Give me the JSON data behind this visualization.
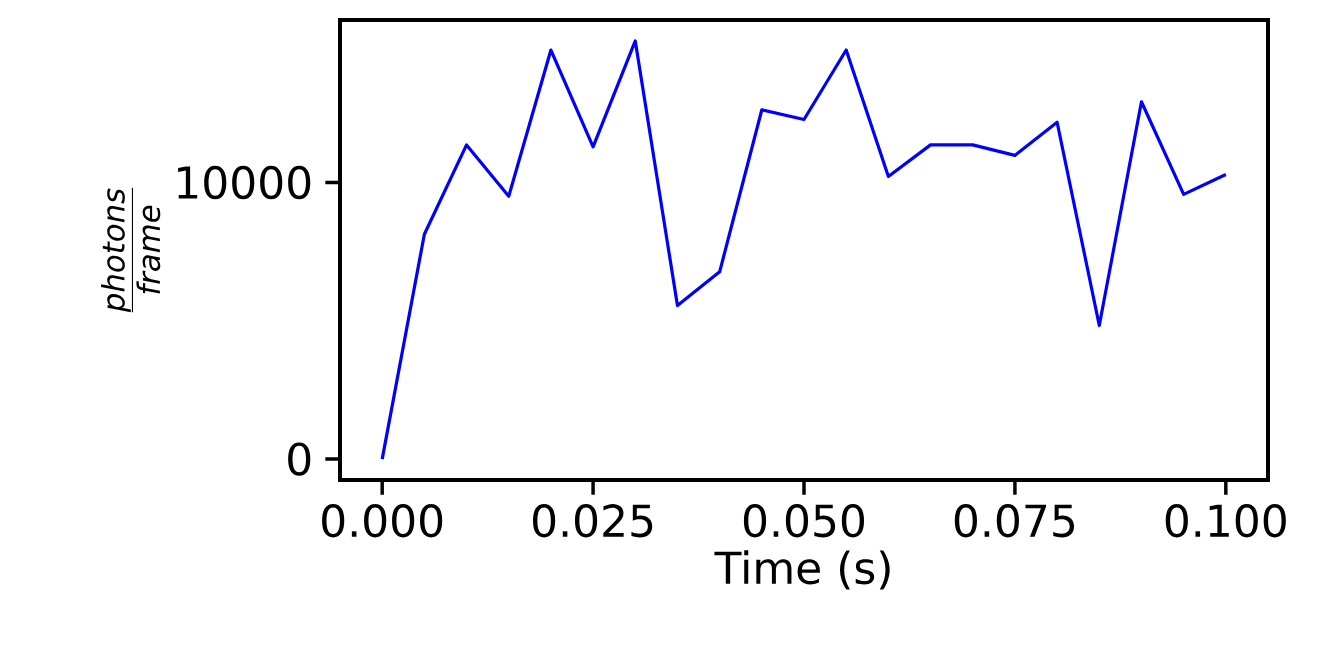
{
  "chart_data": {
    "type": "line",
    "xlabel": "Time (s)",
    "ylabel": "\\frac{\\mathit{photons}}{\\mathit{frame}}",
    "x": [
      0.0,
      0.005,
      0.01,
      0.015,
      0.02,
      0.025,
      0.03,
      0.035,
      0.04,
      0.045,
      0.05,
      0.055,
      0.06,
      0.065,
      0.07,
      0.075,
      0.08,
      0.085,
      0.09,
      0.095,
      0.1
    ],
    "series": [
      {
        "color": "#0000ff",
        "values": [
          0,
          8130,
          11360,
          9500,
          14790,
          11290,
          15120,
          5550,
          6770,
          12630,
          12280,
          14790,
          10220,
          11360,
          11360,
          10980,
          12180,
          4830,
          12920,
          9570,
          10290
        ]
      }
    ],
    "xlim": [
      -0.005,
      0.105
    ],
    "ylim": [
      -756,
      15876
    ],
    "xticks": [
      {
        "value": 0.0,
        "label": "0.000"
      },
      {
        "value": 0.025,
        "label": "0.025"
      },
      {
        "value": 0.05,
        "label": "0.050"
      },
      {
        "value": 0.075,
        "label": "0.075"
      },
      {
        "value": 0.1,
        "label": "0.100"
      }
    ],
    "yticks": [
      0,
      10000
    ],
    "grid": false,
    "marker": "none",
    "line_style": "solid"
  }
}
